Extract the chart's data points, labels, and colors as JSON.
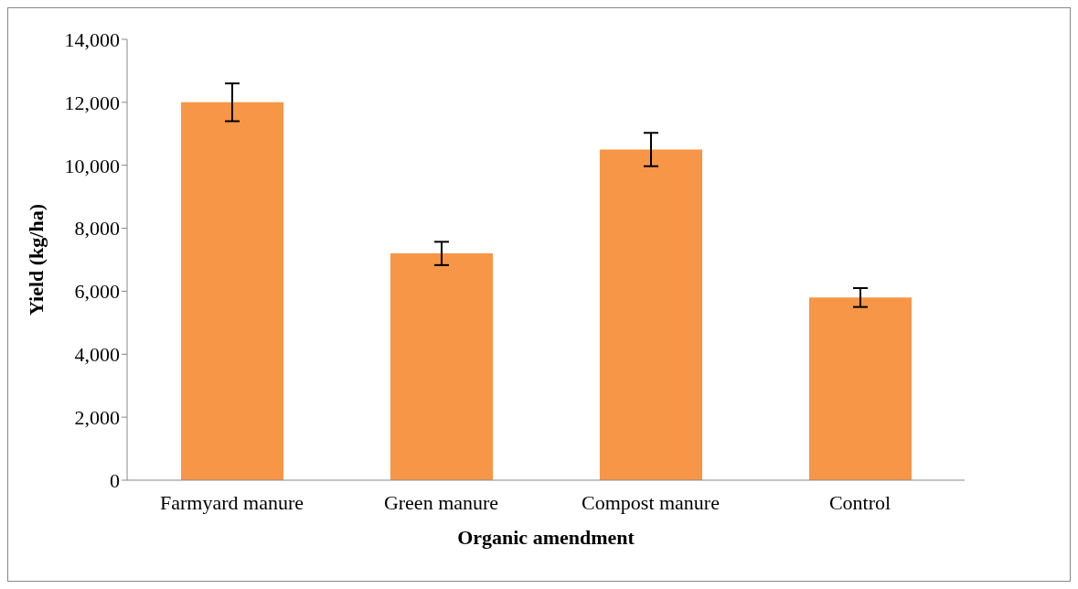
{
  "chart_data": {
    "type": "bar",
    "xlabel": "Organic amendment",
    "ylabel": "Yield (kg/ha)",
    "categories": [
      "Farmyard manure",
      "Green manure",
      "Compost manure",
      "Control"
    ],
    "values": [
      12000,
      7200,
      10500,
      5800
    ],
    "errors": [
      600,
      370,
      530,
      300
    ],
    "color": "#f79646",
    "ylim": [
      0,
      14000
    ],
    "yticks": [
      0,
      {
        "value": 2000,
        "label": "2,000"
      },
      {
        "value": 4000,
        "label": "4,000"
      },
      {
        "value": 6000,
        "label": "6,000"
      },
      {
        "value": 8000,
        "label": "8,000"
      },
      {
        "value": 10000,
        "label": "10,000"
      },
      {
        "value": 12000,
        "label": "12,000"
      },
      {
        "value": 14000,
        "label": "14,000"
      }
    ],
    "grid": false,
    "legend": false
  }
}
